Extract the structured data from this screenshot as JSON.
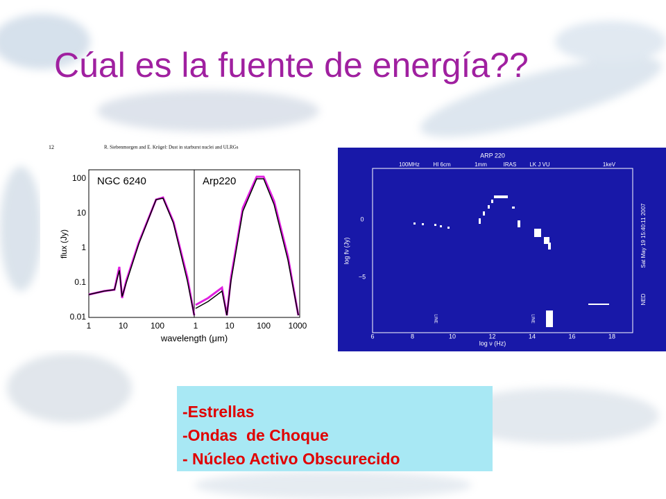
{
  "title": "Cúal es la fuente de energía??",
  "figure_left": {
    "page": "12",
    "authors": "R. Siebenmorgen and E. Krügel: Dust in starburst nuclei and ULRGs",
    "panels": [
      "NGC 6240",
      "Arp220"
    ],
    "y_label": "flux (Jy)",
    "x_label": "wavelength (μm)",
    "yticks": [
      "100",
      "10",
      "1",
      "0.1",
      "0.01"
    ],
    "xticks_left": [
      "1",
      "10",
      "100"
    ],
    "xticks_right": [
      "1",
      "10",
      "100",
      "1000"
    ]
  },
  "figure_right": {
    "title": "ARP 220",
    "bands": [
      "100MHz",
      "HI 6cm",
      "1mm",
      "IRAS",
      "LK J VU",
      "1keV"
    ],
    "y_label": "log fν (Jy)",
    "x_label": "log ν (Hz)",
    "yticks": [
      "0",
      "−5"
    ],
    "xticks": [
      "6",
      "8",
      "10",
      "12",
      "14",
      "16",
      "18"
    ],
    "line_labels": [
      "LINE",
      "LINE"
    ],
    "timestamp": "Sat May 19 15:40:11 2007",
    "source": "NED"
  },
  "list": [
    "-Estrellas",
    "-Ondas  de Choque",
    "- Núcleo Activo Obscurecido"
  ]
}
